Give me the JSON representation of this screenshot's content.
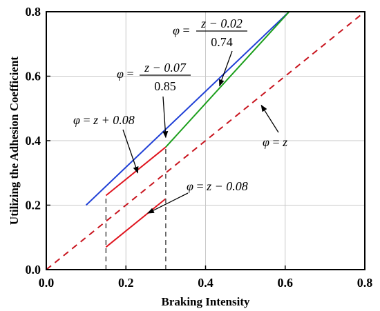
{
  "chart_data": {
    "type": "line",
    "xlabel": "Braking Intensity",
    "ylabel": "Utilizing the Adhesion Coefficient",
    "xlim": [
      0.0,
      0.8
    ],
    "ylim": [
      0.0,
      0.8
    ],
    "xticks": [
      "0.0",
      "0.2",
      "0.4",
      "0.6",
      "0.8"
    ],
    "yticks": [
      "0.0",
      "0.2",
      "0.4",
      "0.6",
      "0.8"
    ],
    "grid": true,
    "series": [
      {
        "color": "#1f3fd6",
        "style": "solid",
        "x": [
          0.1,
          0.61
        ],
        "y": [
          0.2,
          0.8
        ]
      },
      {
        "color": "#1a9e1a",
        "style": "solid",
        "x": [
          0.3,
          0.61
        ],
        "y": [
          0.38,
          0.8
        ]
      },
      {
        "color": "#e0141e",
        "style": "solid",
        "x": [
          0.15,
          0.3
        ],
        "y": [
          0.23,
          0.38
        ]
      },
      {
        "color": "#e0141e",
        "style": "solid",
        "x": [
          0.15,
          0.3
        ],
        "y": [
          0.07,
          0.22
        ]
      },
      {
        "color": "#c8141e",
        "style": "dashed",
        "x": [
          0.0,
          0.8
        ],
        "y": [
          0.0,
          0.8
        ]
      },
      {
        "color": "#555555",
        "style": "dashed",
        "x": [
          0.15,
          0.15
        ],
        "y": [
          0.0,
          0.23
        ]
      },
      {
        "color": "#555555",
        "style": "dashed",
        "x": [
          0.3,
          0.3
        ],
        "y": [
          0.0,
          0.38
        ]
      }
    ],
    "annotations": [
      {
        "phi": "φ",
        "eq": " = ",
        "num": "z − 0.02",
        "den": "0.74",
        "points_to": [
          0.435,
          0.57
        ]
      },
      {
        "phi": "φ",
        "eq": " = ",
        "num": "z − 0.07",
        "den": "0.85",
        "points_to": [
          0.3,
          0.41
        ]
      },
      {
        "phi": "φ",
        "eq": " = ",
        "text": "z + 0.08",
        "points_to": [
          0.23,
          0.3
        ]
      },
      {
        "phi": "φ",
        "eq": " = ",
        "text": "z",
        "points_to": [
          0.54,
          0.51
        ]
      },
      {
        "phi": "φ",
        "eq": " = ",
        "text": "z − 0.08",
        "points_to": [
          0.255,
          0.175
        ]
      }
    ]
  }
}
